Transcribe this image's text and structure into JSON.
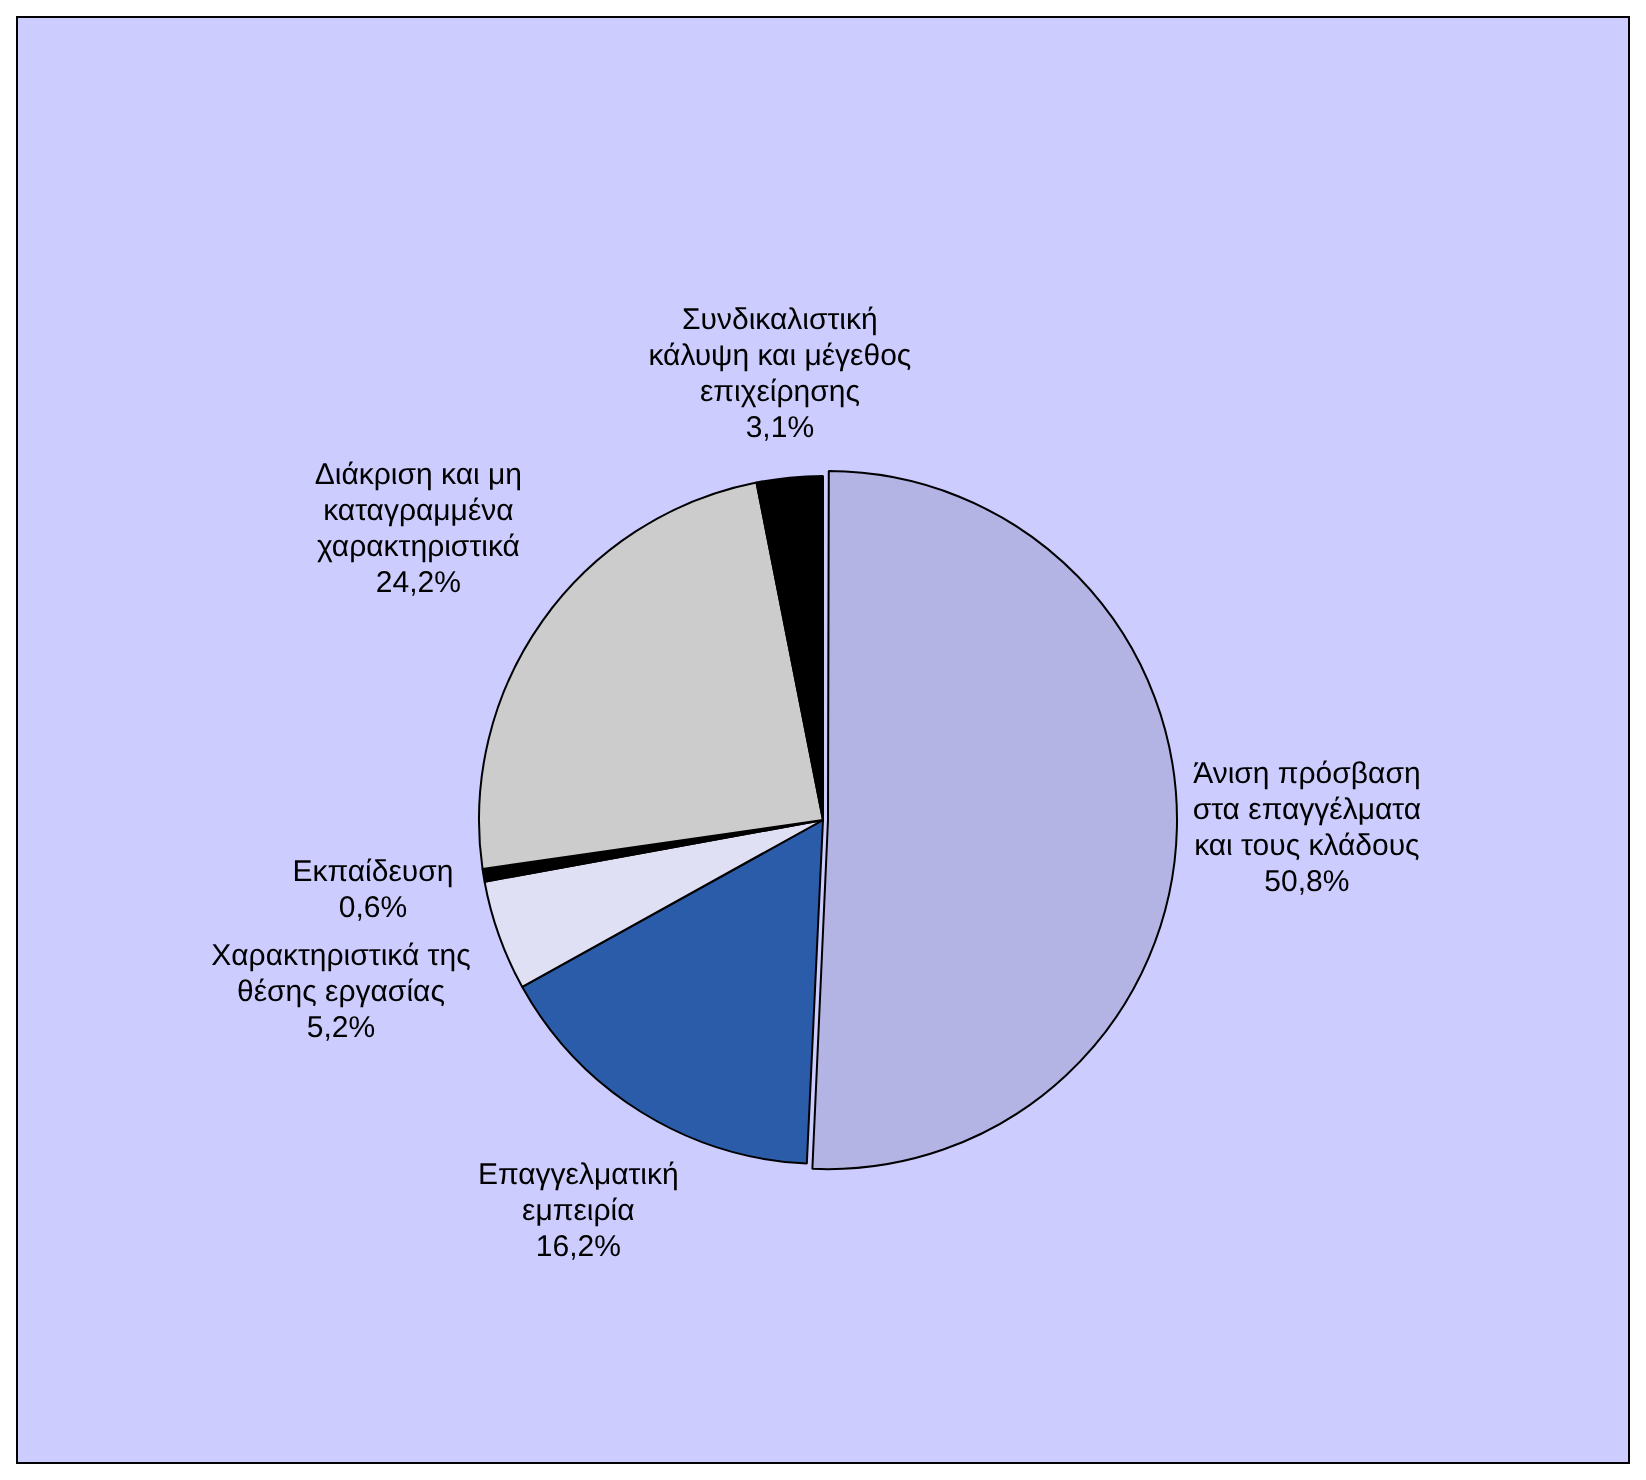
{
  "chart_data": {
    "type": "pie",
    "categories": [
      "Άνιση πρόσβαση στα επαγγέλματα και τους κλάδους",
      "Επαγγελματική εμπειρία",
      "Χαρακτηριστικά της θέσης εργασίας",
      "Εκπαίδευση",
      "Διάκριση και μη καταγραμμένα χαρακτηριστικά",
      "Συνδικαλιστική κάλυψη και μέγεθος επιχείρησης"
    ],
    "values": [
      50.8,
      16.2,
      5.2,
      0.6,
      24.2,
      3.1
    ],
    "value_labels": [
      "50,8%",
      "16,2%",
      "5,2%",
      "0,6%",
      "24,2%",
      "3,1%"
    ],
    "colors": [
      "#b4b4e4",
      "#2a5caa",
      "#e0e0f4",
      "#000000",
      "#cccccc",
      "#000000"
    ]
  }
}
